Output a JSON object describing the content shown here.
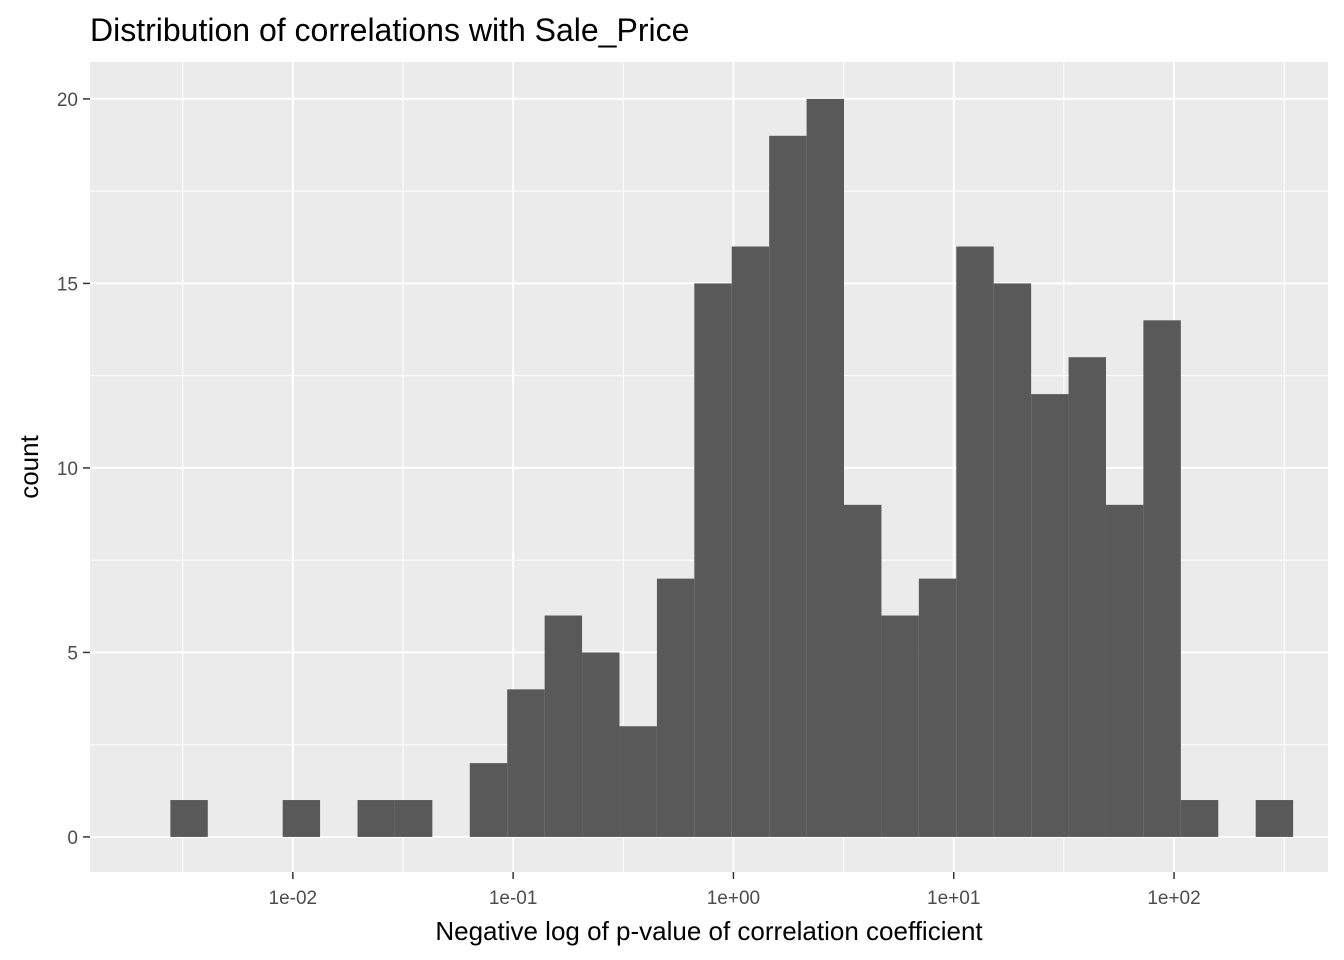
{
  "chart_data": {
    "type": "bar",
    "title": "Distribution of correlations with Sale_Price",
    "xlabel": "Negative log of p-value of correlation coefficient",
    "ylabel": "count",
    "x_scale": "log10",
    "x_tick_labels": [
      "1e-02",
      "1e-01",
      "1e+00",
      "1e+01",
      "1e+02"
    ],
    "x_tick_values": [
      0.01,
      0.1,
      1,
      10,
      100
    ],
    "y_tick_values": [
      0,
      5,
      10,
      15,
      20
    ],
    "y_tick_labels": [
      "0",
      "5",
      "10",
      "15",
      "20"
    ],
    "xlim": [
      0.0012,
      500
    ],
    "ylim": [
      -0.95,
      21
    ],
    "bins": [
      {
        "x_start": 0.00278,
        "x_end": 0.00411,
        "count": 1
      },
      {
        "x_start": 0.00411,
        "x_end": 0.00608,
        "count": 0
      },
      {
        "x_start": 0.00608,
        "x_end": 0.00899,
        "count": 0
      },
      {
        "x_start": 0.00899,
        "x_end": 0.01329,
        "count": 1
      },
      {
        "x_start": 0.01329,
        "x_end": 0.01966,
        "count": 0
      },
      {
        "x_start": 0.01966,
        "x_end": 0.02907,
        "count": 1
      },
      {
        "x_start": 0.02907,
        "x_end": 0.04298,
        "count": 1
      },
      {
        "x_start": 0.04298,
        "x_end": 0.06356,
        "count": 0
      },
      {
        "x_start": 0.06356,
        "x_end": 0.09398,
        "count": 2
      },
      {
        "x_start": 0.09398,
        "x_end": 0.13897,
        "count": 4
      },
      {
        "x_start": 0.13897,
        "x_end": 0.20549,
        "count": 6
      },
      {
        "x_start": 0.20549,
        "x_end": 0.30386,
        "count": 5
      },
      {
        "x_start": 0.30386,
        "x_end": 0.44932,
        "count": 3
      },
      {
        "x_start": 0.44932,
        "x_end": 0.66441,
        "count": 7
      },
      {
        "x_start": 0.66441,
        "x_end": 0.98245,
        "count": 15
      },
      {
        "x_start": 0.98245,
        "x_end": 1.4528,
        "count": 16
      },
      {
        "x_start": 1.4528,
        "x_end": 2.1482,
        "count": 19
      },
      {
        "x_start": 2.1482,
        "x_end": 3.1765,
        "count": 20
      },
      {
        "x_start": 3.1765,
        "x_end": 4.6971,
        "count": 9
      },
      {
        "x_start": 4.6971,
        "x_end": 6.9456,
        "count": 6
      },
      {
        "x_start": 6.9456,
        "x_end": 10.27,
        "count": 7
      },
      {
        "x_start": 10.27,
        "x_end": 15.19,
        "count": 16
      },
      {
        "x_start": 15.19,
        "x_end": 22.46,
        "count": 15
      },
      {
        "x_start": 22.46,
        "x_end": 33.21,
        "count": 12
      },
      {
        "x_start": 33.21,
        "x_end": 49.1,
        "count": 13
      },
      {
        "x_start": 49.1,
        "x_end": 72.6,
        "count": 9
      },
      {
        "x_start": 72.6,
        "x_end": 107.4,
        "count": 14
      },
      {
        "x_start": 107.4,
        "x_end": 158.8,
        "count": 1
      },
      {
        "x_start": 158.8,
        "x_end": 234.8,
        "count": 0
      },
      {
        "x_start": 234.8,
        "x_end": 347.2,
        "count": 1
      }
    ],
    "grid": true,
    "legend": "none",
    "colors": {
      "panel_background": "#ebebeb",
      "grid": "#ffffff",
      "bar_fill": "#595959",
      "tick_label": "#4d4d4d",
      "tick_mark": "#333333",
      "text": "#000000"
    }
  }
}
